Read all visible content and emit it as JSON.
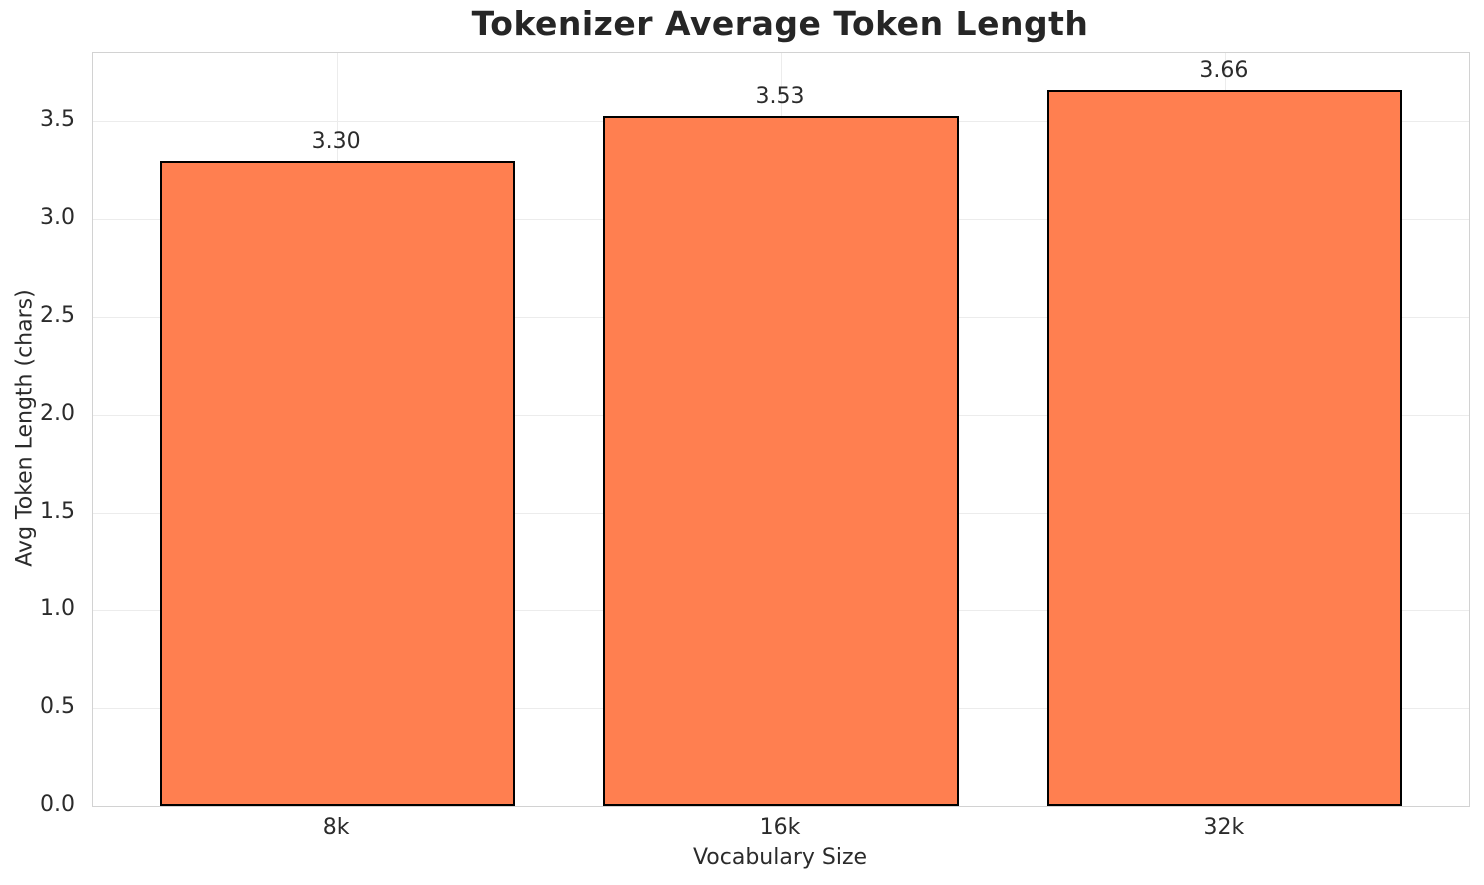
{
  "chart_data": {
    "type": "bar",
    "title": "Tokenizer Average Token Length",
    "xlabel": "Vocabulary Size",
    "ylabel": "Avg Token Length (chars)",
    "categories": [
      "8k",
      "16k",
      "32k"
    ],
    "values": [
      3.3,
      3.53,
      3.66
    ],
    "value_labels": [
      "3.30",
      "3.53",
      "3.66"
    ],
    "yticks": [
      0.0,
      0.5,
      1.0,
      1.5,
      2.0,
      2.5,
      3.0,
      3.5
    ],
    "ytick_labels": [
      "0.0",
      "0.5",
      "1.0",
      "1.5",
      "2.0",
      "2.5",
      "3.0",
      "3.5"
    ],
    "ylim": [
      0,
      3.85
    ],
    "xlim": [
      -0.55,
      2.55
    ],
    "bar_rel_width": 0.8,
    "grid": "on",
    "legend": "none",
    "colors": {
      "bar_fill": "#FF7F50",
      "bar_edge": "#000000",
      "grid": "#ececec",
      "spine": "#d2d2d2",
      "text": "#2b2b2b"
    }
  }
}
